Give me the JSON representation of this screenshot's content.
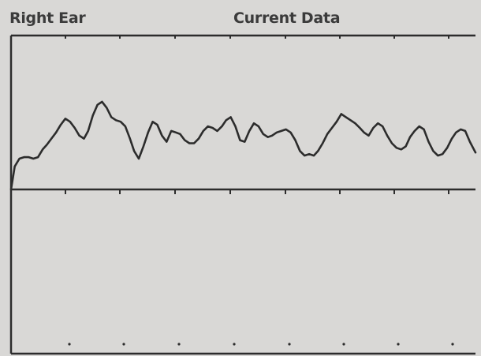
{
  "header": {
    "ear_label": "Right Ear",
    "mode_label": "Current Data"
  },
  "colors": {
    "background": "#d9d8d6",
    "ink": "#2c2c2c"
  },
  "chart_data": [
    {
      "type": "line",
      "title": "",
      "xlabel": "",
      "ylabel": "",
      "xlim": [
        0,
        100
      ],
      "ylim": [
        0,
        100
      ],
      "grid": false,
      "series": [
        {
          "x": [
            0,
            0.8,
            1.8,
            2.8,
            3.8,
            4.8,
            5.8,
            6.8,
            7.7,
            8.7,
            9.7,
            10.7,
            11.7,
            12.7,
            13.7,
            14.7,
            15.7,
            16.6,
            17.6,
            18.6,
            19.6,
            20.6,
            21.6,
            22.6,
            23.6,
            24.6,
            25.6,
            26.5,
            27.5,
            28.5,
            29.5,
            30.5,
            31.5,
            32.5,
            33.5,
            34.5,
            35.5,
            36.4,
            37.4,
            38.4,
            39.4,
            40.4,
            41.4,
            42.4,
            43.4,
            44.4,
            45.4,
            46.3,
            47.3,
            48.3,
            49.3,
            50.3,
            51.3,
            52.3,
            53.3,
            54.3,
            55.3,
            56.2,
            57.2,
            58.2,
            59.2,
            60.2,
            61.2,
            62.2,
            63.2,
            64.2,
            65.2,
            66.1,
            67.1,
            68.1,
            69.1,
            70.1,
            71.1,
            72.1,
            73.1,
            74.1,
            75.1,
            76.0,
            77.0,
            78.0,
            79.0,
            80.0,
            81.0,
            82.0,
            83.0,
            84.0,
            85.0,
            85.9,
            86.9,
            87.9,
            88.9,
            89.9,
            90.9,
            91.9,
            92.9,
            93.9,
            94.9,
            95.8,
            96.8,
            97.8,
            98.8,
            100
          ],
          "y": [
            0,
            15,
            20,
            21,
            21,
            20,
            21,
            26,
            29,
            33,
            37,
            42,
            46,
            44,
            40,
            35,
            33,
            38,
            48,
            55,
            57,
            53,
            47,
            45,
            44,
            41,
            33,
            25,
            20,
            28,
            37,
            44,
            42,
            35,
            31,
            38,
            37,
            36,
            32,
            30,
            30,
            33,
            38,
            41,
            40,
            38,
            41,
            45,
            47,
            41,
            32,
            31,
            38,
            43,
            41,
            36,
            34,
            35,
            37,
            38,
            39,
            37,
            32,
            25,
            22,
            23,
            22,
            25,
            30,
            36,
            40,
            44,
            49,
            47,
            45,
            43,
            40,
            37,
            35,
            40,
            43,
            41,
            35,
            30,
            27,
            26,
            28,
            34,
            38,
            41,
            39,
            31,
            25,
            22,
            23,
            27,
            33,
            37,
            39,
            38,
            31,
            24
          ]
        }
      ]
    },
    {
      "type": "line",
      "title": "",
      "xlabel": "",
      "ylabel": "",
      "grid": false,
      "series": []
    }
  ]
}
